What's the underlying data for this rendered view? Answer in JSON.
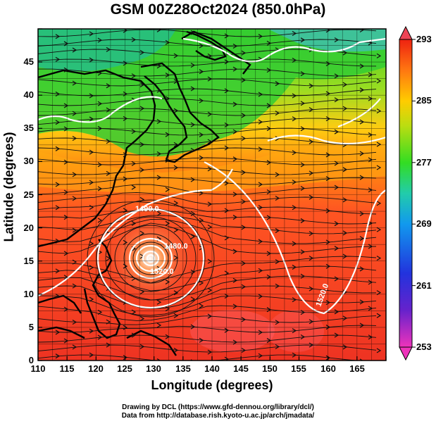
{
  "title": "GSM 00Z28Oct2024 (850.0hPa)",
  "axes": {
    "xlabel": "Longitude (degrees)",
    "ylabel": "Latitude  (degrees)",
    "x_ticks": [
      "110",
      "115",
      "120",
      "125",
      "130",
      "135",
      "140",
      "145",
      "150",
      "155",
      "160",
      "165"
    ],
    "y_ticks": [
      "0",
      "5",
      "10",
      "15",
      "20",
      "25",
      "30",
      "35",
      "40",
      "45"
    ],
    "xlim": [
      110,
      170
    ],
    "ylim": [
      0,
      50
    ]
  },
  "colorbar": {
    "ticks": [
      "253",
      "261",
      "269",
      "277",
      "285",
      "293"
    ],
    "range": [
      253,
      293
    ],
    "colors": [
      "#ee33bb",
      "#3311cc",
      "#1188ee",
      "#22dd44",
      "#ffcc00",
      "#ee2211"
    ]
  },
  "contour_labels": [
    "1490.0",
    "1520.0",
    "1480.0",
    "1520.0"
  ],
  "credits": [
    "Drawing by DCL (https://www.gfd-dennou.org/library/dcl/)",
    "Data from http://database.rish.kyoto-u.ac.jp/arch/jmadata/"
  ],
  "colors": {
    "background": "#ffffff",
    "frame": "#000000",
    "contour": "#ffffff"
  }
}
